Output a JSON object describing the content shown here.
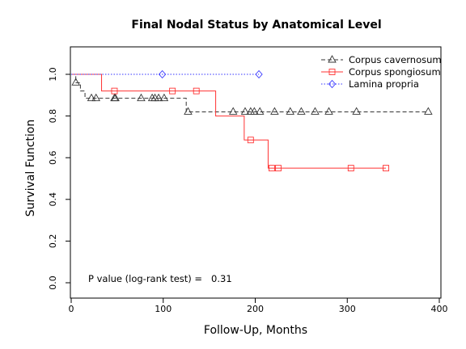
{
  "chart_data": {
    "type": "line",
    "title": "Final Nodal Status by Anatomical Level",
    "xlabel": "Follow-Up, Months",
    "ylabel": "Survival Function",
    "xlim": [
      0,
      400
    ],
    "ylim": [
      0,
      1
    ],
    "x_ticks": [
      0,
      100,
      200,
      300,
      400
    ],
    "y_ticks": [
      0.0,
      0.2,
      0.4,
      0.6,
      0.8,
      1.0
    ],
    "x_tick_labels": [
      "0",
      "100",
      "200",
      "300",
      "400"
    ],
    "y_tick_labels": [
      "0.0",
      "0.2",
      "0.4",
      "0.6",
      "0.8",
      "1.0"
    ],
    "legend_position": "top-right",
    "annotation": "P value (log-rank test) =   0.31",
    "series": [
      {
        "name": "Corpus cavernosum",
        "color": "#333333",
        "line_style": "dashed",
        "marker": "triangle",
        "steps": [
          [
            0,
            1.0
          ],
          [
            5,
            0.96
          ],
          [
            10,
            0.92
          ],
          [
            15,
            0.885
          ],
          [
            125,
            0.82
          ],
          [
            388,
            0.82
          ]
        ],
        "censored": [
          [
            5,
            0.96
          ],
          [
            22,
            0.885
          ],
          [
            27,
            0.885
          ],
          [
            47,
            0.885
          ],
          [
            48,
            0.885
          ],
          [
            76,
            0.885
          ],
          [
            88,
            0.885
          ],
          [
            91,
            0.885
          ],
          [
            95,
            0.885
          ],
          [
            101,
            0.885
          ],
          [
            127,
            0.82
          ],
          [
            176,
            0.82
          ],
          [
            189,
            0.82
          ],
          [
            195,
            0.82
          ],
          [
            199,
            0.82
          ],
          [
            205,
            0.82
          ],
          [
            221,
            0.82
          ],
          [
            238,
            0.82
          ],
          [
            250,
            0.82
          ],
          [
            265,
            0.82
          ],
          [
            280,
            0.82
          ],
          [
            310,
            0.82
          ],
          [
            388,
            0.82
          ]
        ]
      },
      {
        "name": "Corpus spongiosum",
        "color": "#ff3333",
        "line_style": "solid",
        "marker": "square",
        "steps": [
          [
            0,
            1.0
          ],
          [
            33,
            0.92
          ],
          [
            157,
            0.8
          ],
          [
            188,
            0.685
          ],
          [
            214,
            0.55
          ],
          [
            342,
            0.55
          ]
        ],
        "censored": [
          [
            47,
            0.92
          ],
          [
            110,
            0.92
          ],
          [
            136,
            0.92
          ],
          [
            195,
            0.685
          ],
          [
            218,
            0.55
          ],
          [
            225,
            0.55
          ],
          [
            304,
            0.55
          ],
          [
            342,
            0.55
          ]
        ]
      },
      {
        "name": "Lamina propria",
        "color": "#3333ff",
        "line_style": "dotted",
        "marker": "diamond",
        "steps": [
          [
            0,
            1.0
          ],
          [
            204,
            1.0
          ]
        ],
        "censored": [
          [
            99,
            1.0
          ],
          [
            204,
            1.0
          ]
        ]
      }
    ]
  }
}
